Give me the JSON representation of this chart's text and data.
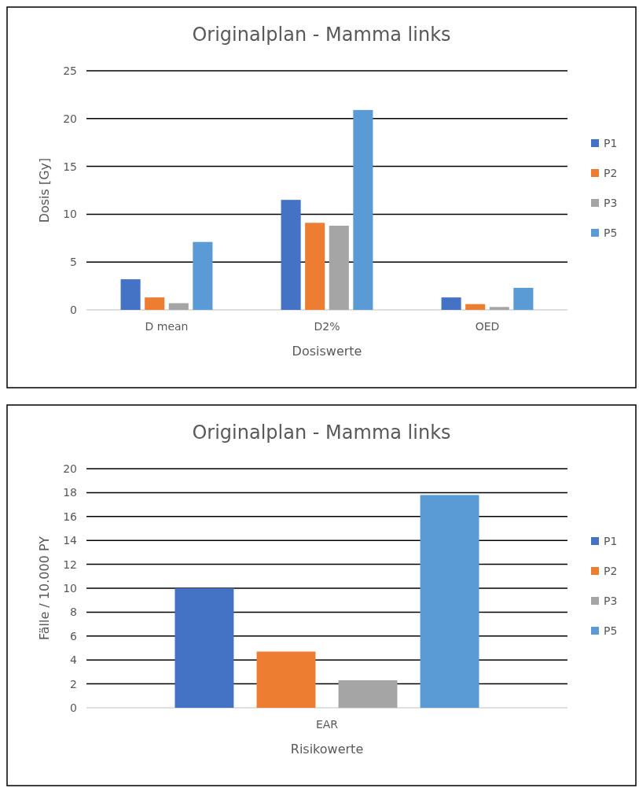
{
  "chart_data": [
    {
      "type": "bar",
      "title": "Originalplan - Mamma links",
      "xlabel": "Dosiswerte",
      "ylabel": "Dosis [Gy]",
      "categories": [
        "D mean",
        "D2%",
        "OED"
      ],
      "series": [
        {
          "name": "P1",
          "color": "#4472c4",
          "values": [
            3.2,
            11.5,
            1.3
          ]
        },
        {
          "name": "P2",
          "color": "#ed7d31",
          "values": [
            1.3,
            9.1,
            0.6
          ]
        },
        {
          "name": "P3",
          "color": "#a5a5a5",
          "values": [
            0.7,
            8.8,
            0.3
          ]
        },
        {
          "name": "P5",
          "color": "#5b9bd5",
          "values": [
            7.1,
            20.9,
            2.3
          ]
        }
      ],
      "ylim": [
        0,
        25
      ],
      "yticks": [
        0,
        5,
        10,
        15,
        20,
        25
      ],
      "grid": "y",
      "legend": "right"
    },
    {
      "type": "bar",
      "title": "Originalplan - Mamma links",
      "xlabel": "Risikowerte",
      "ylabel": "Fälle / 10.000 PY",
      "categories": [
        "EAR"
      ],
      "series": [
        {
          "name": "P1",
          "color": "#4472c4",
          "values": [
            10.0
          ]
        },
        {
          "name": "P2",
          "color": "#ed7d31",
          "values": [
            4.7
          ]
        },
        {
          "name": "P3",
          "color": "#a5a5a5",
          "values": [
            2.3
          ]
        },
        {
          "name": "P5",
          "color": "#5b9bd5",
          "values": [
            17.8
          ]
        }
      ],
      "ylim": [
        0,
        20
      ],
      "yticks": [
        0,
        2,
        4,
        6,
        8,
        10,
        12,
        14,
        16,
        18,
        20
      ],
      "grid": "y",
      "legend": "right"
    }
  ]
}
